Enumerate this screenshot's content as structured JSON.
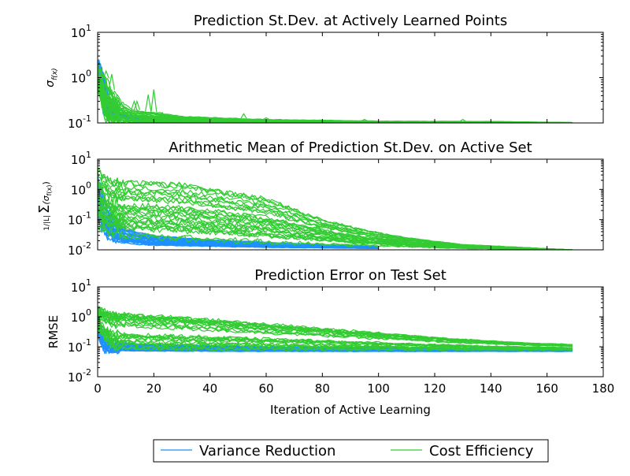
{
  "chart_data": [
    {
      "type": "line",
      "title": "Prediction St.Dev. at Actively Learned Points",
      "ylabel": "σ_f(x)",
      "yscale": "log",
      "ylim": [
        0.1,
        10
      ],
      "xlim": [
        0,
        180
      ],
      "yticks": [
        {
          "base": "10",
          "exp": "-1"
        },
        {
          "base": "10",
          "exp": "0"
        },
        {
          "base": "10",
          "exp": "1"
        }
      ],
      "series": [
        {
          "name": "Variance Reduction",
          "color": "#1e90ff",
          "runs": 30,
          "x_end": 100,
          "envelope_low": [
            [
              0,
              0.9
            ],
            [
              2,
              0.16
            ],
            [
              5,
              0.13
            ],
            [
              10,
              0.125
            ],
            [
              20,
              0.115
            ],
            [
              40,
              0.108
            ],
            [
              60,
              0.104
            ],
            [
              100,
              0.101
            ]
          ],
          "envelope_high": [
            [
              0,
              2.2
            ],
            [
              1,
              1.9
            ],
            [
              2,
              1.2
            ],
            [
              4,
              0.35
            ],
            [
              8,
              0.16
            ],
            [
              20,
              0.135
            ],
            [
              40,
              0.12
            ],
            [
              60,
              0.112
            ],
            [
              100,
              0.106
            ]
          ]
        },
        {
          "name": "Cost Efficiency",
          "color": "#33cc33",
          "runs": 30,
          "x_end": 169,
          "envelope_low": [
            [
              0,
              0.6
            ],
            [
              3,
              0.11
            ],
            [
              10,
              0.103
            ],
            [
              40,
              0.1
            ],
            [
              100,
              0.1
            ],
            [
              169,
              0.1
            ]
          ],
          "envelope_high": [
            [
              0,
              1.8
            ],
            [
              2,
              1.3
            ],
            [
              6,
              0.4
            ],
            [
              12,
              0.2
            ],
            [
              30,
              0.14
            ],
            [
              60,
              0.12
            ],
            [
              100,
              0.11
            ],
            [
              140,
              0.108
            ],
            [
              169,
              0.102
            ]
          ],
          "spikes": [
            [
              3,
              1.4
            ],
            [
              5,
              1.2
            ],
            [
              6,
              0.5
            ],
            [
              13,
              0.3
            ],
            [
              14,
              0.3
            ],
            [
              18,
              0.42
            ],
            [
              20,
              0.55
            ],
            [
              22,
              0.17
            ],
            [
              52,
              0.16
            ],
            [
              60,
              0.13
            ],
            [
              95,
              0.12
            ],
            [
              130,
              0.12
            ]
          ]
        }
      ]
    },
    {
      "type": "line",
      "title": "Arithmetic Mean of Prediction St.Dev. on Active Set",
      "ylabel": "(1/|L|) Σ_{i=0}^{|L|} (σ_f(x))",
      "yscale": "log",
      "ylim": [
        0.01,
        10
      ],
      "xlim": [
        0,
        180
      ],
      "yticks": [
        {
          "base": "10",
          "exp": "-2"
        },
        {
          "base": "10",
          "exp": "-1"
        },
        {
          "base": "10",
          "exp": "0"
        },
        {
          "base": "10",
          "exp": "1"
        }
      ],
      "series": [
        {
          "name": "Variance Reduction",
          "color": "#1e90ff",
          "runs": 30,
          "x_end": 100,
          "envelope_low": [
            [
              0,
              0.1
            ],
            [
              2,
              0.04
            ],
            [
              5,
              0.02
            ],
            [
              10,
              0.016
            ],
            [
              20,
              0.014
            ],
            [
              40,
              0.013
            ],
            [
              60,
              0.012
            ],
            [
              100,
              0.011
            ]
          ],
          "envelope_high": [
            [
              0,
              3
            ],
            [
              1,
              1.5
            ],
            [
              3,
              0.4
            ],
            [
              6,
              0.12
            ],
            [
              10,
              0.05
            ],
            [
              20,
              0.03
            ],
            [
              40,
              0.022
            ],
            [
              60,
              0.018
            ],
            [
              100,
              0.013
            ]
          ]
        },
        {
          "name": "Cost Efficiency",
          "color": "#33cc33",
          "runs": 30,
          "x_end": 169,
          "envelope_low": [
            [
              0,
              0.05
            ],
            [
              5,
              0.03
            ],
            [
              10,
              0.025
            ],
            [
              30,
              0.02
            ],
            [
              60,
              0.016
            ],
            [
              100,
              0.013
            ],
            [
              130,
              0.011
            ],
            [
              169,
              0.01
            ]
          ],
          "envelope_high": [
            [
              0,
              4
            ],
            [
              3,
              2.5
            ],
            [
              5,
              1.8
            ],
            [
              10,
              1.7
            ],
            [
              30,
              1.5
            ],
            [
              40,
              1
            ],
            [
              50,
              0.7
            ],
            [
              60,
              0.5
            ],
            [
              70,
              0.22
            ],
            [
              80,
              0.1
            ],
            [
              95,
              0.045
            ],
            [
              110,
              0.025
            ],
            [
              130,
              0.015
            ],
            [
              169,
              0.01
            ]
          ]
        }
      ]
    },
    {
      "type": "line",
      "title": "Prediction Error on Test Set",
      "ylabel": "RMSE",
      "yscale": "log",
      "ylim": [
        0.01,
        10
      ],
      "xlim": [
        0,
        180
      ],
      "xlabel": "Iteration of Active Learning",
      "xticks": [
        0,
        20,
        40,
        60,
        80,
        100,
        120,
        140,
        160,
        180
      ],
      "yticks": [
        {
          "base": "10",
          "exp": "-2"
        },
        {
          "base": "10",
          "exp": "-1"
        },
        {
          "base": "10",
          "exp": "0"
        },
        {
          "base": "10",
          "exp": "1"
        }
      ],
      "series": [
        {
          "name": "Variance Reduction",
          "color": "#1e90ff",
          "runs": 30,
          "x_end": 169,
          "envelope_low": [
            [
              0,
              0.3
            ],
            [
              2,
              0.08
            ],
            [
              5,
              0.075
            ],
            [
              20,
              0.072
            ],
            [
              60,
              0.07
            ],
            [
              100,
              0.07
            ],
            [
              169,
              0.07
            ]
          ],
          "envelope_high": [
            [
              0,
              1.8
            ],
            [
              1,
              0.6
            ],
            [
              3,
              0.18
            ],
            [
              6,
              0.14
            ],
            [
              20,
              0.12
            ],
            [
              60,
              0.1
            ],
            [
              100,
              0.095
            ],
            [
              169,
              0.09
            ]
          ]
        },
        {
          "name": "Cost Efficiency",
          "color": "#33cc33",
          "runs": 30,
          "x_end": 169,
          "envelope_low": [
            [
              0,
              0.3
            ],
            [
              5,
              0.07
            ],
            [
              20,
              0.06
            ],
            [
              60,
              0.065
            ],
            [
              100,
              0.07
            ],
            [
              169,
              0.075
            ]
          ],
          "envelope_high": [
            [
              0,
              2.2
            ],
            [
              3,
              1.4
            ],
            [
              10,
              1.3
            ],
            [
              30,
              1
            ],
            [
              50,
              0.7
            ],
            [
              70,
              0.5
            ],
            [
              90,
              0.35
            ],
            [
              110,
              0.25
            ],
            [
              130,
              0.18
            ],
            [
              150,
              0.14
            ],
            [
              169,
              0.12
            ]
          ]
        }
      ]
    }
  ],
  "legend": {
    "placement": "bottom",
    "items": [
      {
        "label": "Variance Reduction",
        "color": "#1e90ff"
      },
      {
        "label": "Cost Efficiency",
        "color": "#33cc33"
      }
    ]
  }
}
